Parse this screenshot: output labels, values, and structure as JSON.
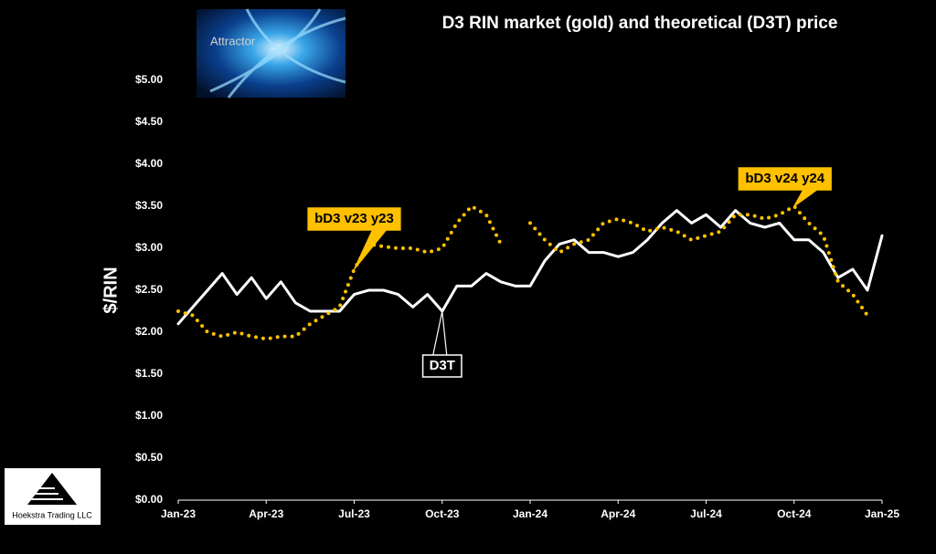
{
  "chart_data": {
    "type": "line",
    "title": "D3 RIN market (gold) and theoretical (D3T) price",
    "y_label": "$/RIN",
    "categories": [
      "Jan-23",
      null,
      null,
      null,
      null,
      null,
      "Apr-23",
      null,
      null,
      null,
      null,
      null,
      "Jul-23",
      null,
      null,
      null,
      null,
      null,
      "Oct-23",
      null,
      null,
      null,
      null,
      null,
      "Jan-24",
      null,
      null,
      null,
      null,
      null,
      "Apr-24",
      null,
      null,
      null,
      null,
      null,
      "Jul-24",
      null,
      null,
      null,
      null,
      null,
      "Oct-24",
      null,
      null,
      null,
      null,
      null,
      "Jan-25"
    ],
    "series": [
      {
        "name": "D3T",
        "color": "#ffffff",
        "style": "solid",
        "values": [
          2.1,
          2.3,
          2.5,
          2.7,
          2.45,
          2.65,
          2.4,
          2.6,
          2.35,
          2.25,
          2.25,
          2.25,
          2.45,
          2.5,
          2.5,
          2.45,
          2.3,
          2.45,
          2.25,
          2.55,
          2.55,
          2.7,
          2.6,
          2.55,
          2.55,
          2.85,
          3.05,
          3.1,
          2.95,
          2.95,
          2.9,
          2.95,
          3.1,
          3.3,
          3.45,
          3.3,
          3.4,
          3.25,
          3.45,
          3.3,
          3.25,
          3.3,
          3.1,
          3.1,
          2.95,
          2.65,
          2.75,
          2.5,
          3.15
        ]
      },
      {
        "name": "bD3",
        "color": "#ffc000",
        "style": "dotted",
        "values": [
          2.25,
          2.2,
          2.0,
          1.95,
          2.0,
          1.95,
          1.92,
          1.95,
          1.95,
          2.1,
          2.2,
          2.3,
          2.75,
          3.05,
          3.02,
          3.0,
          3.0,
          2.95,
          3.0,
          3.3,
          3.5,
          3.4,
          3.05,
          null,
          3.3,
          3.1,
          2.95,
          3.05,
          3.1,
          3.3,
          3.35,
          3.3,
          3.2,
          3.25,
          3.2,
          3.1,
          3.15,
          3.2,
          3.4,
          3.4,
          3.35,
          3.4,
          3.5,
          3.3,
          3.15,
          2.6,
          2.45,
          2.2,
          null
        ]
      }
    ],
    "annotations": [
      {
        "text": "bD3 v23 y23",
        "series": 1,
        "index": 12
      },
      {
        "text": "bD3 v24 y24",
        "series": 1,
        "index": 42
      },
      {
        "text": "D3T",
        "series": 0,
        "index": 18
      }
    ],
    "ylim": [
      0,
      5
    ],
    "yticks": [
      {
        "value": 0,
        "label": "$0.00"
      },
      {
        "value": 0.5,
        "label": "$0.50"
      },
      {
        "value": 1,
        "label": "$1.00"
      },
      {
        "value": 1.5,
        "label": "$1.50"
      },
      {
        "value": 2,
        "label": "$2.00"
      },
      {
        "value": 2.5,
        "label": "$2.50"
      },
      {
        "value": 3,
        "label": "$3.00"
      },
      {
        "value": 3.5,
        "label": "$3.50"
      },
      {
        "value": 4,
        "label": "$4.00"
      },
      {
        "value": 4.5,
        "label": "$4.50"
      },
      {
        "value": 5,
        "label": "$5.00"
      }
    ],
    "grid": false,
    "logo_text": "Attractor",
    "footer_logo": "Hoekstra Trading LLC"
  }
}
